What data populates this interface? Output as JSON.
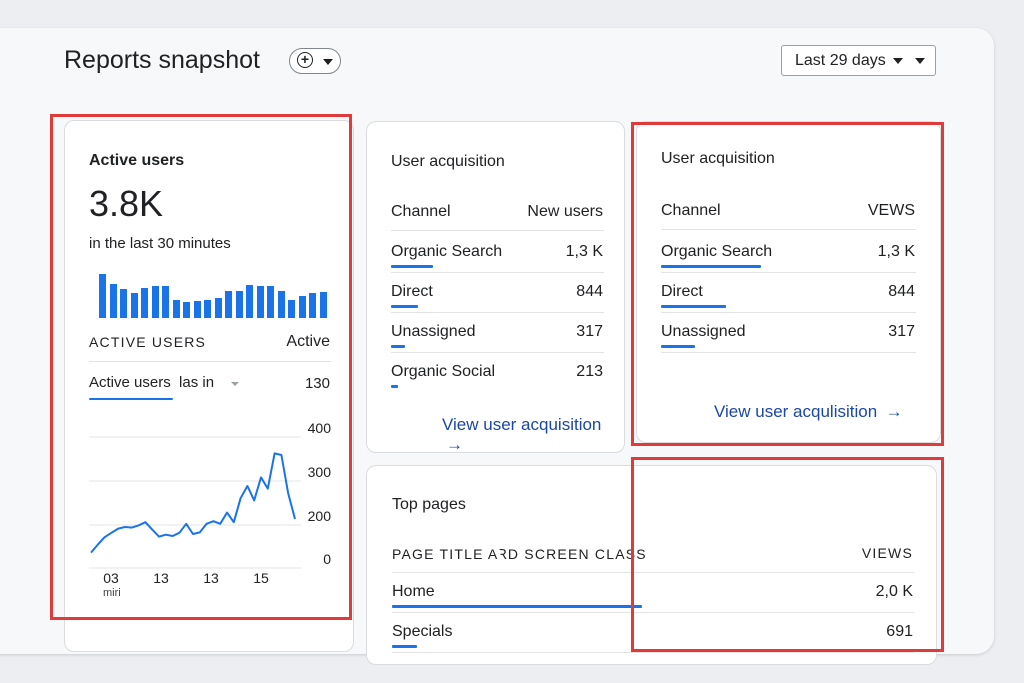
{
  "header": {
    "title": "Reports snapshot",
    "add_icon": "add-circle-icon",
    "date_range_label": "Last 29 days"
  },
  "active_users_card": {
    "title": "Active users",
    "value": "3.8K",
    "subtitle": "in the last 30 minutes",
    "bar_values": [
      44,
      34,
      29,
      25,
      30,
      32,
      32,
      18,
      16,
      17,
      18,
      20,
      27,
      27,
      33,
      32,
      32,
      27,
      18,
      22,
      25,
      26
    ],
    "table_header_left": "ACTIVE USERS",
    "table_header_right": "Active",
    "dropdown_label": "Active users  las in",
    "dropdown_value": "130",
    "line_chart": {
      "y_ticks": [
        "400",
        "300",
        "200",
        "0"
      ],
      "x_ticks": [
        "03",
        "13",
        "13",
        "15"
      ],
      "x_sub_label": "miri"
    }
  },
  "chart_data": {
    "type": "line",
    "y_ticks": [
      400,
      300,
      200,
      0
    ],
    "x_ticks": [
      "03",
      "13",
      "13",
      "15"
    ],
    "values": [
      20,
      45,
      68,
      82,
      95,
      100,
      98,
      105,
      115,
      92,
      70,
      76,
      72,
      82,
      110,
      78,
      83,
      110,
      118,
      110,
      145,
      115,
      190,
      228,
      183,
      255,
      220,
      330,
      325,
      205,
      125
    ]
  },
  "user_acquisition_card": {
    "title": "User acquisition",
    "col_left": "Channel",
    "col_right": "New users",
    "rows": [
      {
        "label": "Organic Search",
        "value": "1,3 K",
        "bar": 0.58
      },
      {
        "label": "Direct",
        "value": "844",
        "bar": 0.38
      },
      {
        "label": "Unassigned",
        "value": "317",
        "bar": 0.2
      },
      {
        "label": "Organic Social",
        "value": "213",
        "bar": 0.1
      }
    ],
    "link": "View user acquisition"
  },
  "user_acquisition_card_2": {
    "title": "User acquisition",
    "col_left": "Channel",
    "col_right": "VEWS",
    "rows": [
      {
        "label": "Organic Search",
        "value": "1,3 K",
        "bar": 0.58
      },
      {
        "label": "Direct",
        "value": "844",
        "bar": 0.38
      },
      {
        "label": "Unassigned",
        "value": "317",
        "bar": 0.2
      }
    ],
    "link": "View user acqulisition"
  },
  "top_pages_card": {
    "title": "Top pages",
    "col_left": "PAGE TITLE  AꝚD SCREEN CLASS",
    "col_right": "VIEWS",
    "rows": [
      {
        "label": "Home",
        "value": "2,0 K",
        "bar": 1.0
      },
      {
        "label": "Specials",
        "value": "691",
        "bar": 0.1
      }
    ]
  },
  "colors": {
    "accent": "#1a73e8",
    "highlight": "#e03a3a",
    "link": "#1a47a8"
  }
}
